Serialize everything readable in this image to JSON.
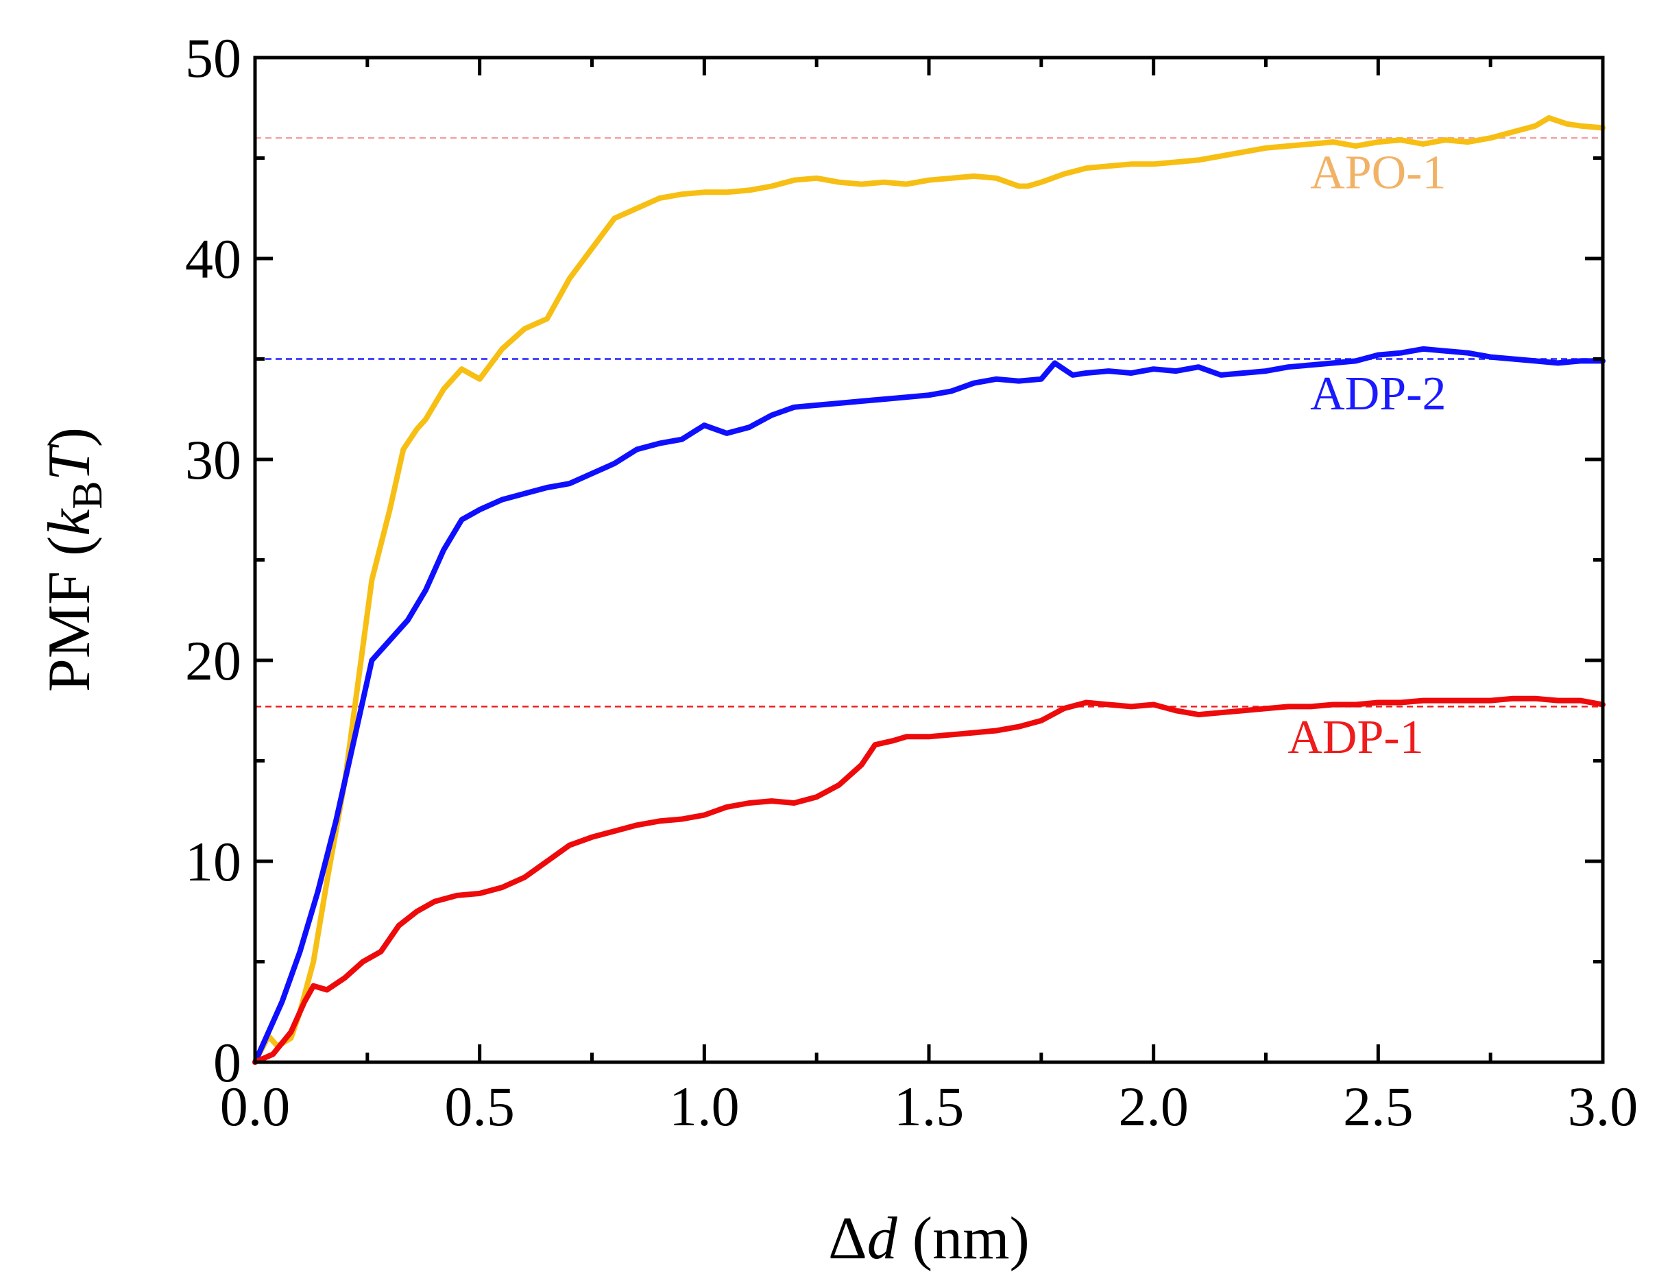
{
  "chart_data": {
    "type": "line",
    "title": "",
    "xlabel": {
      "delta": "Δ",
      "var": "d",
      "unit": " (nm)"
    },
    "ylabel": {
      "prefix": "PMF (",
      "k": "k",
      "sub": "B",
      "t": "T",
      "suffix": ")"
    },
    "xlim": [
      0,
      3
    ],
    "ylim": [
      0,
      50
    ],
    "xticks": [
      0.0,
      0.5,
      1.0,
      1.5,
      2.0,
      2.5,
      3.0
    ],
    "xtick_labels": [
      "0.0",
      "0.5",
      "1.0",
      "1.5",
      "2.0",
      "2.5",
      "3.0"
    ],
    "yticks": [
      0,
      10,
      20,
      30,
      40,
      50
    ],
    "ytick_labels": [
      "0",
      "10",
      "20",
      "30",
      "40",
      "50"
    ],
    "reference_lines": [
      {
        "y": 46.0,
        "color": "#f4a3a3"
      },
      {
        "y": 35.0,
        "color": "#2020ff"
      },
      {
        "y": 17.7,
        "color": "#ee2020"
      }
    ],
    "series": [
      {
        "name": "APO-1",
        "label": "APO-1",
        "color": "#f7bf14",
        "label_color": "#f2b266",
        "label_pos": {
          "x": 2.5,
          "y": 43.5
        },
        "x": [
          0,
          0.03,
          0.05,
          0.08,
          0.1,
          0.13,
          0.16,
          0.2,
          0.23,
          0.26,
          0.3,
          0.33,
          0.36,
          0.38,
          0.42,
          0.46,
          0.5,
          0.55,
          0.6,
          0.65,
          0.7,
          0.75,
          0.8,
          0.85,
          0.9,
          0.95,
          1.0,
          1.05,
          1.1,
          1.15,
          1.2,
          1.25,
          1.3,
          1.35,
          1.4,
          1.45,
          1.5,
          1.55,
          1.6,
          1.65,
          1.7,
          1.72,
          1.75,
          1.8,
          1.85,
          1.9,
          1.95,
          2.0,
          2.05,
          2.1,
          2.15,
          2.2,
          2.25,
          2.3,
          2.35,
          2.4,
          2.45,
          2.5,
          2.55,
          2.6,
          2.65,
          2.7,
          2.75,
          2.8,
          2.85,
          2.88,
          2.92,
          2.95,
          3.0
        ],
        "y": [
          0,
          1.3,
          0.8,
          1.2,
          2.5,
          5.0,
          9.0,
          14.0,
          19.0,
          24.0,
          27.5,
          30.5,
          31.5,
          32.0,
          33.5,
          34.5,
          34.0,
          35.5,
          36.5,
          37.0,
          39.0,
          40.5,
          42.0,
          42.5,
          43.0,
          43.2,
          43.3,
          43.3,
          43.4,
          43.6,
          43.9,
          44.0,
          43.8,
          43.7,
          43.8,
          43.7,
          43.9,
          44.0,
          44.1,
          44.0,
          43.6,
          43.6,
          43.8,
          44.2,
          44.5,
          44.6,
          44.7,
          44.7,
          44.8,
          44.9,
          45.1,
          45.3,
          45.5,
          45.6,
          45.7,
          45.8,
          45.6,
          45.8,
          45.9,
          45.7,
          45.9,
          45.8,
          46.0,
          46.3,
          46.6,
          47.0,
          46.7,
          46.6,
          46.5
        ]
      },
      {
        "name": "ADP-2",
        "label": "ADP-2",
        "color": "#0f0fff",
        "label_color": "#1a1aff",
        "label_pos": {
          "x": 2.5,
          "y": 32.5
        },
        "x": [
          0,
          0.03,
          0.06,
          0.1,
          0.14,
          0.18,
          0.22,
          0.26,
          0.3,
          0.34,
          0.38,
          0.42,
          0.46,
          0.5,
          0.55,
          0.6,
          0.65,
          0.7,
          0.75,
          0.8,
          0.85,
          0.9,
          0.95,
          1.0,
          1.05,
          1.1,
          1.15,
          1.2,
          1.25,
          1.3,
          1.35,
          1.4,
          1.45,
          1.5,
          1.55,
          1.6,
          1.65,
          1.7,
          1.75,
          1.78,
          1.82,
          1.85,
          1.9,
          1.95,
          2.0,
          2.05,
          2.1,
          2.15,
          2.2,
          2.25,
          2.3,
          2.35,
          2.4,
          2.45,
          2.5,
          2.55,
          2.6,
          2.65,
          2.7,
          2.75,
          2.8,
          2.85,
          2.9,
          2.95,
          3.0
        ],
        "y": [
          0,
          1.5,
          3.0,
          5.5,
          8.5,
          12.0,
          16.0,
          20.0,
          21.0,
          22.0,
          23.5,
          25.5,
          27.0,
          27.5,
          28.0,
          28.3,
          28.6,
          28.8,
          29.3,
          29.8,
          30.5,
          30.8,
          31.0,
          31.7,
          31.3,
          31.6,
          32.2,
          32.6,
          32.7,
          32.8,
          32.9,
          33.0,
          33.1,
          33.2,
          33.4,
          33.8,
          34.0,
          33.9,
          34.0,
          34.8,
          34.2,
          34.3,
          34.4,
          34.3,
          34.5,
          34.4,
          34.6,
          34.2,
          34.3,
          34.4,
          34.6,
          34.7,
          34.8,
          34.9,
          35.2,
          35.3,
          35.5,
          35.4,
          35.3,
          35.1,
          35.0,
          34.9,
          34.8,
          34.9,
          34.9
        ]
      },
      {
        "name": "ADP-1",
        "label": "ADP-1",
        "color": "#ee0a0a",
        "label_color": "#ee1c1c",
        "label_pos": {
          "x": 2.45,
          "y": 15.4
        },
        "x": [
          0,
          0.04,
          0.08,
          0.11,
          0.13,
          0.16,
          0.2,
          0.24,
          0.28,
          0.32,
          0.36,
          0.4,
          0.45,
          0.5,
          0.55,
          0.6,
          0.65,
          0.7,
          0.75,
          0.8,
          0.85,
          0.9,
          0.95,
          1.0,
          1.05,
          1.1,
          1.15,
          1.2,
          1.25,
          1.3,
          1.35,
          1.38,
          1.42,
          1.45,
          1.5,
          1.55,
          1.6,
          1.65,
          1.7,
          1.75,
          1.8,
          1.85,
          1.9,
          1.95,
          2.0,
          2.05,
          2.1,
          2.15,
          2.2,
          2.25,
          2.3,
          2.35,
          2.4,
          2.45,
          2.5,
          2.55,
          2.6,
          2.65,
          2.7,
          2.75,
          2.8,
          2.85,
          2.9,
          2.95,
          3.0
        ],
        "y": [
          0,
          0.4,
          1.5,
          3.0,
          3.8,
          3.6,
          4.2,
          5.0,
          5.5,
          6.8,
          7.5,
          8.0,
          8.3,
          8.4,
          8.7,
          9.2,
          10.0,
          10.8,
          11.2,
          11.5,
          11.8,
          12.0,
          12.1,
          12.3,
          12.7,
          12.9,
          13.0,
          12.9,
          13.2,
          13.8,
          14.8,
          15.8,
          16.0,
          16.2,
          16.2,
          16.3,
          16.4,
          16.5,
          16.7,
          17.0,
          17.6,
          17.9,
          17.8,
          17.7,
          17.8,
          17.5,
          17.3,
          17.4,
          17.5,
          17.6,
          17.7,
          17.7,
          17.8,
          17.8,
          17.9,
          17.9,
          18.0,
          18.0,
          18.0,
          18.0,
          18.1,
          18.1,
          18.0,
          18.0,
          17.8
        ]
      }
    ]
  }
}
